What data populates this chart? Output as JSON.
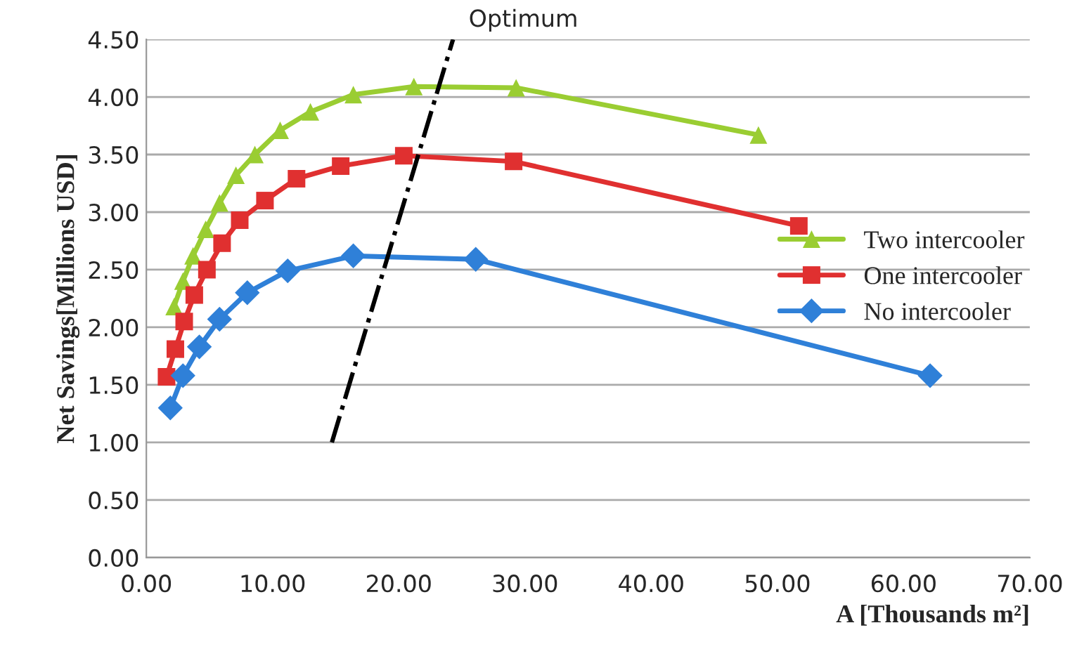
{
  "chart_data": {
    "type": "line",
    "xlabel": "A [Thousands m²]",
    "ylabel": "Net Savings[Millions USD]",
    "xlim": [
      0,
      70
    ],
    "ylim": [
      0,
      4.5
    ],
    "xticks": [
      {
        "value": 0,
        "label": "0.00"
      },
      {
        "value": 10,
        "label": "10.00"
      },
      {
        "value": 20,
        "label": "20.00"
      },
      {
        "value": 30,
        "label": "30.00"
      },
      {
        "value": 40,
        "label": "40.00"
      },
      {
        "value": 50,
        "label": "50.00"
      },
      {
        "value": 60,
        "label": "60.00"
      },
      {
        "value": 70,
        "label": "70.00"
      }
    ],
    "yticks": [
      {
        "value": 0,
        "label": "0.00"
      },
      {
        "value": 0.5,
        "label": "0.50"
      },
      {
        "value": 1,
        "label": "1.00"
      },
      {
        "value": 1.5,
        "label": "1.50"
      },
      {
        "value": 2,
        "label": "2.00"
      },
      {
        "value": 2.5,
        "label": "2.50"
      },
      {
        "value": 3,
        "label": "3.00"
      },
      {
        "value": 3.5,
        "label": "3.50"
      },
      {
        "value": 4,
        "label": "4.00"
      },
      {
        "value": 4.5,
        "label": "4.50"
      }
    ],
    "grid": "y",
    "legend": "right",
    "series": [
      {
        "name": "Two intercooler",
        "color": "#9acd32",
        "marker": "triangle",
        "x": [
          2.2,
          2.9,
          3.7,
          4.7,
          5.8,
          7.1,
          8.6,
          10.6,
          13.0,
          16.4,
          21.2,
          29.3,
          48.5
        ],
        "values": [
          2.18,
          2.4,
          2.62,
          2.85,
          3.08,
          3.32,
          3.5,
          3.71,
          3.87,
          4.02,
          4.09,
          4.08,
          3.67
        ]
      },
      {
        "name": "One intercooler",
        "color": "#e03030",
        "marker": "square",
        "x": [
          1.6,
          2.3,
          3.0,
          3.8,
          4.8,
          6.0,
          7.4,
          9.4,
          11.9,
          15.4,
          20.4,
          29.1,
          51.7
        ],
        "values": [
          1.57,
          1.81,
          2.05,
          2.28,
          2.5,
          2.73,
          2.93,
          3.1,
          3.29,
          3.4,
          3.49,
          3.44,
          2.88
        ]
      },
      {
        "name": "No intercooler",
        "color": "#2f80d8",
        "marker": "diamond",
        "x": [
          1.9,
          2.9,
          4.2,
          5.8,
          8.0,
          11.2,
          16.4,
          26.1,
          62.1
        ],
        "values": [
          1.3,
          1.58,
          1.83,
          2.07,
          2.3,
          2.49,
          2.62,
          2.59,
          1.58
        ]
      },
      {
        "name": "Optimum",
        "color": "#000000",
        "marker": "none",
        "line_style": "dashdot",
        "x": [
          14.7,
          24.3
        ],
        "values": [
          1.0,
          4.5
        ]
      }
    ]
  }
}
